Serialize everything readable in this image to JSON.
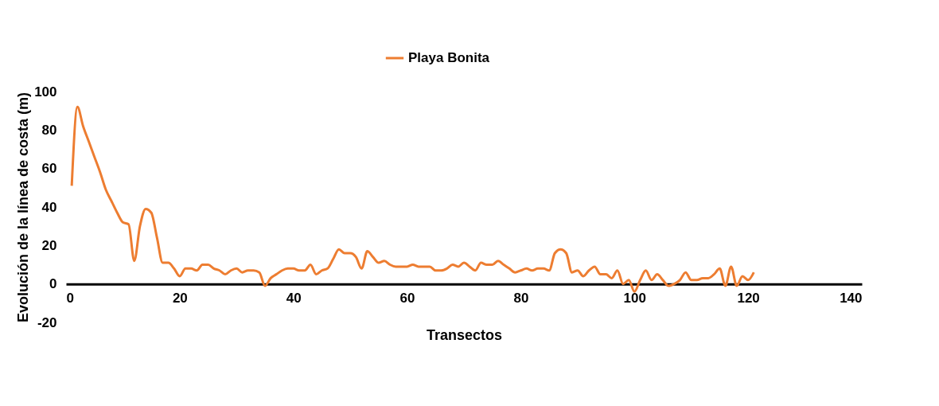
{
  "chart_data": {
    "type": "line",
    "xlabel": "Transectos",
    "ylabel": "Evolución de la línea de costa (m)",
    "legend": "top",
    "grid": false,
    "marker": "none",
    "line_style": "solid",
    "xlim": [
      0,
      140
    ],
    "xticks": [
      0,
      20,
      40,
      60,
      80,
      100,
      120,
      140
    ],
    "ylim": [
      -20,
      100
    ],
    "yticks": [
      -20,
      0,
      20,
      40,
      60,
      80,
      100
    ],
    "x": [
      1,
      2,
      3,
      4,
      5,
      6,
      7,
      8,
      9,
      10,
      11,
      12,
      13,
      14,
      15,
      16,
      17,
      18,
      19,
      20,
      21,
      22,
      23,
      24,
      25,
      26,
      27,
      28,
      29,
      30,
      31,
      32,
      33,
      34,
      35,
      36,
      37,
      38,
      39,
      40,
      41,
      42,
      43,
      44,
      45,
      46,
      47,
      48,
      49,
      50,
      51,
      52,
      53,
      54,
      55,
      56,
      57,
      58,
      59,
      60,
      61,
      62,
      63,
      64,
      65,
      66,
      67,
      68,
      69,
      70,
      71,
      72,
      73,
      74,
      75,
      76,
      77,
      78,
      79,
      80,
      81,
      82,
      83,
      84,
      85,
      86,
      87,
      88,
      89,
      90,
      91,
      92,
      93,
      94,
      95,
      96,
      97,
      98,
      99,
      100,
      101,
      102,
      103,
      104,
      105,
      106,
      107,
      108,
      109,
      110,
      111,
      112,
      113,
      114,
      115,
      116,
      117,
      118,
      119,
      120,
      121
    ],
    "series": [
      {
        "name": "Playa Bonita",
        "color": "#ed7d31",
        "values": [
          51,
          92,
          82,
          74,
          66,
          58,
          49,
          43,
          37,
          32,
          31,
          12,
          30,
          39,
          37,
          24,
          11,
          11,
          8,
          4,
          8,
          8,
          7,
          10,
          10,
          8,
          7,
          5,
          7,
          8,
          6,
          7,
          7,
          6,
          -1,
          3,
          5,
          7,
          8,
          8,
          7,
          7,
          10,
          5,
          7,
          8,
          13,
          18,
          16,
          16,
          14,
          8,
          17,
          14,
          11,
          12,
          10,
          9,
          9,
          9,
          10,
          9,
          9,
          9,
          7,
          7,
          8,
          10,
          9,
          11,
          9,
          7,
          11,
          10,
          10,
          12,
          10,
          8,
          6,
          7,
          8,
          7,
          8,
          8,
          7,
          16,
          18,
          16,
          6,
          7,
          4,
          7,
          9,
          5,
          5,
          3,
          7,
          0,
          2,
          -4,
          2,
          7,
          2,
          5,
          2,
          -1,
          0,
          2,
          6,
          2,
          2,
          3,
          3,
          5,
          8,
          -1,
          9,
          -1,
          4,
          2,
          6
        ]
      }
    ]
  }
}
